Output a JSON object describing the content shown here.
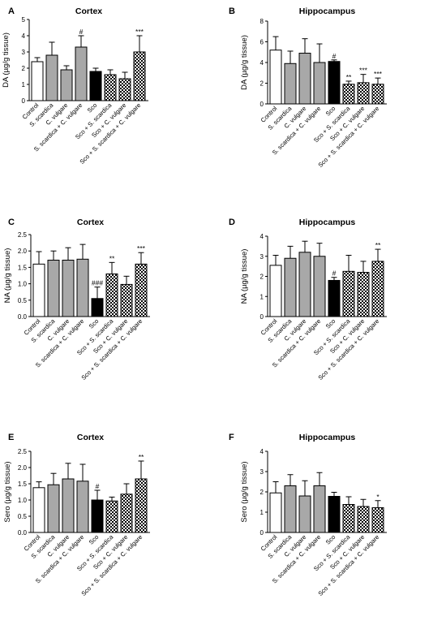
{
  "figure_title": "",
  "colors": {
    "white": "#ffffff",
    "gray": "#a8a8a8",
    "black": "#000000",
    "axis": "#000000"
  },
  "chart_data": [
    {
      "panel": "A",
      "type": "bar",
      "title": "Cortex",
      "ylabel": "DA (µg/g tissue)",
      "ylim": [
        0,
        5
      ],
      "yticks": [
        0,
        1,
        2,
        3,
        4,
        5
      ],
      "categories": [
        "Control",
        "S. scardica",
        "C. vulgare",
        "S. scardica + C. vulgare",
        "Sco",
        "Sco + S. scardica",
        "Sco + C. vulgare",
        "Sco + S. scardica + C. vulgare"
      ],
      "fills": [
        "white",
        "gray",
        "gray",
        "gray",
        "black",
        "check",
        "check",
        "check"
      ],
      "values": [
        2.4,
        2.8,
        1.9,
        3.3,
        1.8,
        1.6,
        1.35,
        3.0
      ],
      "errors": [
        0.25,
        0.8,
        0.25,
        0.7,
        0.2,
        0.3,
        0.4,
        1.0
      ],
      "annotations": [
        "",
        "",
        "",
        "#",
        "",
        "",
        "",
        "***"
      ]
    },
    {
      "panel": "B",
      "type": "bar",
      "title": "Hippocampus",
      "ylabel": "DA (µg/g tissue)",
      "ylim": [
        0,
        8
      ],
      "yticks": [
        0,
        2,
        4,
        6,
        8
      ],
      "categories": [
        "Control",
        "S. scardica",
        "C. vulgare",
        "S. scardica + C. vulgare",
        "Sco",
        "Sco + S. scardica",
        "Sco + C. vulgare",
        "Sco + S. scardica + C. vulgare"
      ],
      "fills": [
        "white",
        "gray",
        "gray",
        "gray",
        "black",
        "check",
        "check",
        "check"
      ],
      "values": [
        5.2,
        3.9,
        4.9,
        4.0,
        4.1,
        1.9,
        2.05,
        1.9
      ],
      "errors": [
        1.3,
        1.2,
        1.4,
        1.8,
        0.15,
        0.3,
        0.8,
        0.6
      ],
      "annotations": [
        "",
        "",
        "",
        "",
        "#",
        "**",
        "***",
        "***"
      ]
    },
    {
      "panel": "C",
      "type": "bar",
      "title": "Cortex",
      "ylabel": "NA (µg/g tissue)",
      "ylim": [
        0,
        2.5
      ],
      "yticks": [
        0.0,
        0.5,
        1.0,
        1.5,
        2.0,
        2.5
      ],
      "categories": [
        "Control",
        "S. scardica",
        "C. vulgare",
        "S. scardica + C. vulgare",
        "Sco",
        "Sco + S. scardica",
        "Sco + C. vulgare",
        "Sco + S. scardica + C. vulgare"
      ],
      "fills": [
        "white",
        "gray",
        "gray",
        "gray",
        "black",
        "check",
        "check",
        "check"
      ],
      "values": [
        1.6,
        1.72,
        1.72,
        1.75,
        0.55,
        1.3,
        0.98,
        1.6
      ],
      "errors": [
        0.38,
        0.28,
        0.38,
        0.45,
        0.35,
        0.35,
        0.25,
        0.35
      ],
      "annotations": [
        "",
        "",
        "",
        "",
        "###",
        "**",
        "",
        "***"
      ]
    },
    {
      "panel": "D",
      "type": "bar",
      "title": "Hippocampus",
      "ylabel": "NA (µg/g tissue)",
      "ylim": [
        0,
        4
      ],
      "yticks": [
        0,
        1,
        2,
        3,
        4
      ],
      "categories": [
        "Control",
        "S. scardica",
        "C. vulgare",
        "S. scardica + C. vulgare",
        "Sco",
        "Sco + S. scardica",
        "Sco + C. vulgare",
        "Sco + S. scardica + C. vulgare"
      ],
      "fills": [
        "white",
        "gray",
        "gray",
        "gray",
        "black",
        "check",
        "check",
        "check"
      ],
      "values": [
        2.55,
        2.9,
        3.2,
        3.0,
        1.8,
        2.25,
        2.2,
        2.75
      ],
      "errors": [
        0.5,
        0.6,
        0.55,
        0.65,
        0.15,
        0.8,
        0.55,
        0.6
      ],
      "annotations": [
        "",
        "",
        "",
        "",
        "#",
        "",
        "",
        "**"
      ]
    },
    {
      "panel": "E",
      "type": "bar",
      "title": "Cortex",
      "ylabel": "Sero (µg/g tissue)",
      "ylim": [
        0,
        2.5
      ],
      "yticks": [
        0.0,
        0.5,
        1.0,
        1.5,
        2.0,
        2.5
      ],
      "categories": [
        "Control",
        "S. scardica",
        "C. vulgare",
        "S. scardica + C. vulgare",
        "Sco",
        "Sco + S. scardica",
        "Sco + C. vulgare",
        "Sco + S. scardica + C. vulgare"
      ],
      "fills": [
        "white",
        "gray",
        "gray",
        "gray",
        "black",
        "check",
        "check",
        "check"
      ],
      "values": [
        1.38,
        1.47,
        1.65,
        1.58,
        1.0,
        0.97,
        1.18,
        1.65
      ],
      "errors": [
        0.18,
        0.35,
        0.48,
        0.52,
        0.3,
        0.12,
        0.32,
        0.55
      ],
      "annotations": [
        "",
        "",
        "",
        "",
        "#",
        "",
        "",
        "**"
      ]
    },
    {
      "panel": "F",
      "type": "bar",
      "title": "Hippocampus",
      "ylabel": "Sero (µg/g tissue)",
      "ylim": [
        0,
        4
      ],
      "yticks": [
        0,
        1,
        2,
        3,
        4
      ],
      "categories": [
        "Control",
        "S. scardica",
        "C. vulgare",
        "S. scardica + C. vulgare",
        "Sco",
        "Sco + S. scardica",
        "Sco + C. vulgare",
        "Sco + S. scardica + C. vulgare"
      ],
      "fills": [
        "white",
        "gray",
        "gray",
        "gray",
        "black",
        "check",
        "check",
        "check"
      ],
      "values": [
        1.95,
        2.3,
        1.8,
        2.3,
        1.78,
        1.38,
        1.28,
        1.22
      ],
      "errors": [
        0.55,
        0.55,
        0.75,
        0.65,
        0.2,
        0.38,
        0.35,
        0.35
      ],
      "annotations": [
        "",
        "",
        "",
        "",
        "",
        "",
        "",
        "*"
      ]
    }
  ]
}
